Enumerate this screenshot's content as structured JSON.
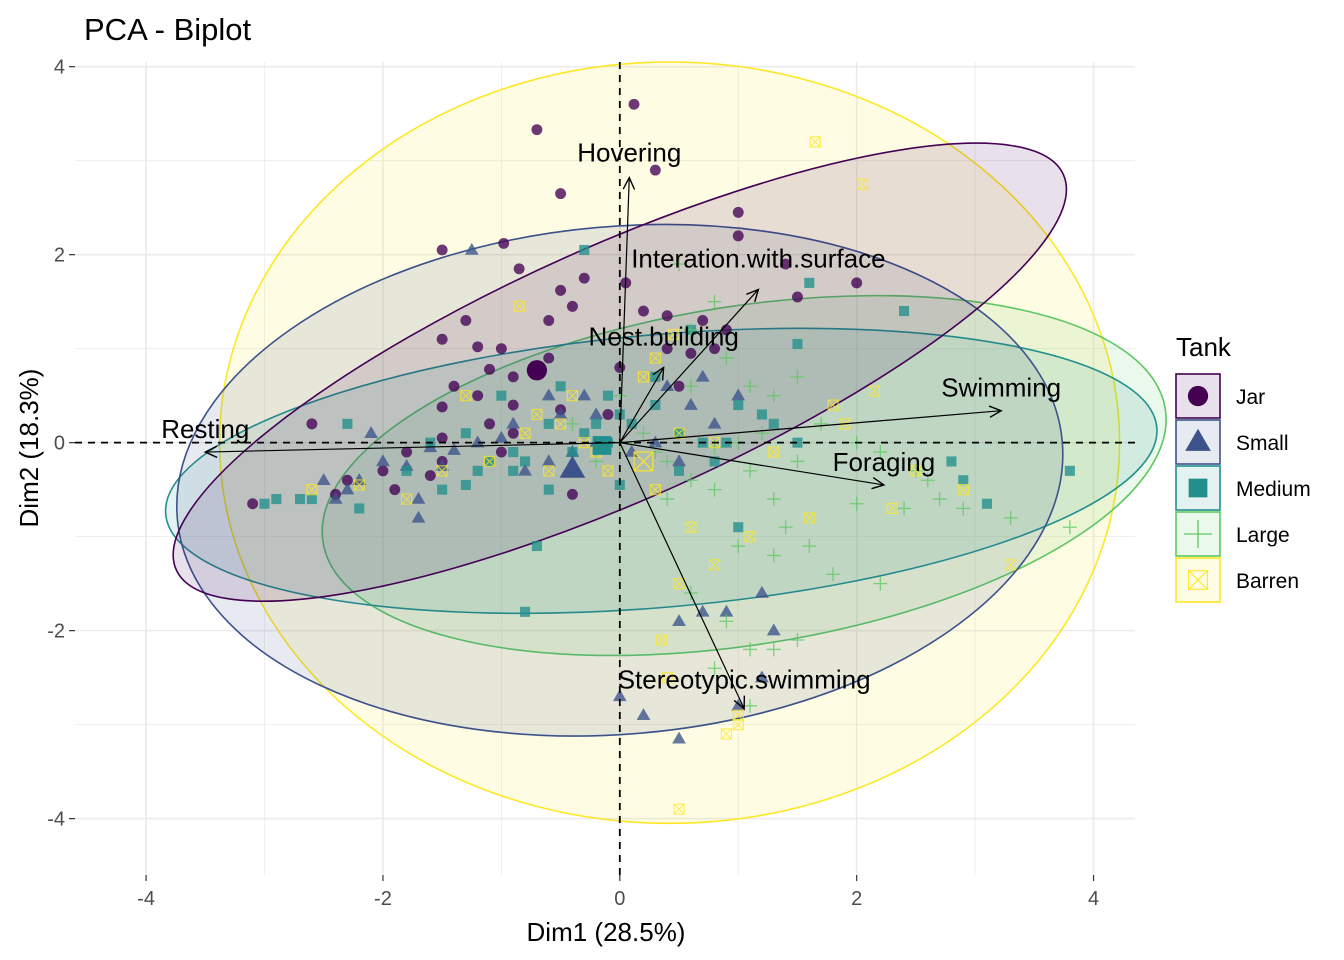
{
  "chart_data": {
    "type": "scatter",
    "title": "PCA - Biplot",
    "xlabel": "Dim1 (28.5%)",
    "ylabel": "Dim2 (18.3%)",
    "xlim": [
      -4.6,
      4.35
    ],
    "ylim": [
      -4.6,
      4.05
    ],
    "xticks": [
      -4,
      -2,
      0,
      2,
      4
    ],
    "yticks": [
      -4,
      -2,
      0,
      2,
      4
    ],
    "grid": true,
    "legend": {
      "title": "Tank",
      "position": "right"
    },
    "series": [
      {
        "name": "Jar",
        "shape": "circle",
        "color": "#440154",
        "centroid": [
          -0.7,
          0.77
        ],
        "ellipse": {
          "cx": 0.0,
          "cy": 0.75,
          "rx": 4.1,
          "ry": 1.35,
          "angle": 24
        },
        "points": [
          [
            -0.7,
            3.33
          ],
          [
            0.12,
            3.6
          ],
          [
            -0.5,
            2.65
          ],
          [
            -0.98,
            2.12
          ],
          [
            -1.5,
            2.05
          ],
          [
            -0.3,
            1.75
          ],
          [
            -0.5,
            1.62
          ],
          [
            -0.85,
            1.85
          ],
          [
            -0.4,
            1.45
          ],
          [
            -0.6,
            1.3
          ],
          [
            -1.3,
            1.3
          ],
          [
            -1.5,
            1.1
          ],
          [
            -1.2,
            1.02
          ],
          [
            -1.0,
            1.0
          ],
          [
            -0.6,
            0.9
          ],
          [
            -1.1,
            0.78
          ],
          [
            -0.9,
            0.7
          ],
          [
            -1.4,
            0.6
          ],
          [
            -1.2,
            0.5
          ],
          [
            -0.9,
            0.4
          ],
          [
            -0.5,
            0.35
          ],
          [
            -1.5,
            0.38
          ],
          [
            -1.1,
            0.2
          ],
          [
            -0.9,
            0.1
          ],
          [
            -1.5,
            0.05
          ],
          [
            -1.0,
            -0.1
          ],
          [
            -1.5,
            -0.2
          ],
          [
            -1.8,
            -0.1
          ],
          [
            -2.0,
            -0.3
          ],
          [
            -1.9,
            -0.5
          ],
          [
            -2.3,
            -0.4
          ],
          [
            -2.6,
            0.2
          ],
          [
            -3.1,
            -0.65
          ],
          [
            -1.6,
            -0.35
          ],
          [
            -2.4,
            -0.55
          ],
          [
            -0.4,
            -0.55
          ],
          [
            -0.1,
            0.3
          ],
          [
            0.0,
            0.8
          ],
          [
            0.4,
            1.0
          ],
          [
            0.6,
            0.95
          ],
          [
            0.7,
            1.3
          ],
          [
            0.9,
            1.2
          ],
          [
            1.0,
            2.2
          ],
          [
            1.0,
            2.45
          ],
          [
            1.4,
            1.9
          ],
          [
            1.5,
            1.55
          ],
          [
            2.0,
            1.7
          ],
          [
            0.3,
            2.9
          ],
          [
            0.05,
            1.7
          ],
          [
            0.5,
            0.6
          ],
          [
            0.2,
            1.4
          ],
          [
            0.8,
            1.0
          ],
          [
            0.4,
            1.35
          ]
        ]
      },
      {
        "name": "Small",
        "shape": "triangle",
        "color": "#3b528b",
        "centroid": [
          -0.4,
          -0.28
        ],
        "ellipse": {
          "cx": 0.0,
          "cy": -0.4,
          "rx": 3.75,
          "ry": 2.7,
          "angle": 5
        },
        "points": [
          [
            -1.25,
            2.05
          ],
          [
            -2.3,
            -0.5
          ],
          [
            -2.5,
            -0.4
          ],
          [
            -2.0,
            -0.2
          ],
          [
            -1.8,
            -0.25
          ],
          [
            -1.6,
            -0.05
          ],
          [
            -1.4,
            -0.08
          ],
          [
            -1.2,
            0.0
          ],
          [
            -1.0,
            0.05
          ],
          [
            -0.8,
            -0.3
          ],
          [
            -0.6,
            -0.2
          ],
          [
            -0.4,
            -0.1
          ],
          [
            -0.2,
            0.0
          ],
          [
            -0.5,
            0.3
          ],
          [
            -0.3,
            0.5
          ],
          [
            -0.2,
            0.3
          ],
          [
            0.1,
            -0.1
          ],
          [
            0.3,
            0.0
          ],
          [
            0.5,
            -0.2
          ],
          [
            0.6,
            0.4
          ],
          [
            0.8,
            0.2
          ],
          [
            1.0,
            0.5
          ],
          [
            -2.1,
            0.1
          ],
          [
            -2.2,
            -0.4
          ],
          [
            -1.7,
            -0.6
          ],
          [
            -1.7,
            -0.8
          ],
          [
            -2.4,
            -0.6
          ],
          [
            0.7,
            -1.8
          ],
          [
            0.9,
            -1.8
          ],
          [
            1.2,
            -1.6
          ],
          [
            0.5,
            -1.9
          ],
          [
            1.3,
            -2.0
          ],
          [
            0.0,
            -2.7
          ],
          [
            0.2,
            -2.9
          ],
          [
            0.5,
            -3.15
          ],
          [
            1.0,
            -2.8
          ],
          [
            1.2,
            -2.5
          ],
          [
            -0.9,
            0.2
          ],
          [
            -1.5,
            -0.25
          ],
          [
            -0.6,
            0.5
          ],
          [
            0.4,
            0.6
          ],
          [
            0.7,
            0.7
          ]
        ]
      },
      {
        "name": "Medium",
        "shape": "square",
        "color": "#21908c",
        "centroid": [
          -0.15,
          -0.03
        ],
        "ellipse": {
          "cx": 0.35,
          "cy": -0.3,
          "rx": 4.2,
          "ry": 1.45,
          "angle": 5
        },
        "points": [
          [
            -0.3,
            2.05
          ],
          [
            1.6,
            1.7
          ],
          [
            1.5,
            1.05
          ],
          [
            2.4,
            1.4
          ],
          [
            -2.3,
            0.2
          ],
          [
            -2.7,
            -0.6
          ],
          [
            -2.9,
            -0.6
          ],
          [
            -3.0,
            -0.65
          ],
          [
            -2.6,
            -0.6
          ],
          [
            -2.2,
            -0.7
          ],
          [
            -1.8,
            -0.3
          ],
          [
            -1.5,
            -0.5
          ],
          [
            -1.3,
            -0.45
          ],
          [
            -1.1,
            -0.2
          ],
          [
            -1.2,
            -0.3
          ],
          [
            -0.9,
            -0.1
          ],
          [
            -0.8,
            -0.2
          ],
          [
            -0.6,
            -0.5
          ],
          [
            -0.4,
            -0.1
          ],
          [
            -0.3,
            0.1
          ],
          [
            -0.2,
            0.2
          ],
          [
            -0.1,
            0.5
          ],
          [
            0.0,
            -0.45
          ],
          [
            0.1,
            0.2
          ],
          [
            0.3,
            0.4
          ],
          [
            0.5,
            0.1
          ],
          [
            0.7,
            0.0
          ],
          [
            0.8,
            -0.2
          ],
          [
            1.0,
            0.4
          ],
          [
            1.2,
            0.3
          ],
          [
            1.3,
            0.2
          ],
          [
            1.5,
            0.0
          ],
          [
            2.8,
            -0.2
          ],
          [
            2.9,
            -0.4
          ],
          [
            3.1,
            -0.65
          ],
          [
            3.8,
            -0.3
          ],
          [
            -0.7,
            -1.1
          ],
          [
            -0.9,
            -0.3
          ],
          [
            -1.0,
            0.5
          ],
          [
            -0.5,
            0.6
          ],
          [
            0.3,
            0.7
          ],
          [
            -0.1,
            0.0
          ],
          [
            -0.6,
            0.2
          ],
          [
            -1.6,
            0.0
          ],
          [
            -1.3,
            0.1
          ],
          [
            -0.8,
            -1.8
          ],
          [
            0.5,
            -0.3
          ],
          [
            0.0,
            0.3
          ],
          [
            0.6,
            1.2
          ],
          [
            0.9,
            0.0
          ],
          [
            1.0,
            -0.9
          ]
        ]
      },
      {
        "name": "Large",
        "shape": "plus",
        "color": "#5dc863",
        "centroid": [
          0.0,
          0.0
        ],
        "ellipse": {
          "cx": 1.05,
          "cy": -0.35,
          "rx": 3.6,
          "ry": 1.8,
          "angle": 9
        },
        "points": [
          [
            0.5,
            1.9
          ],
          [
            0.8,
            1.5
          ],
          [
            0.6,
            1.2
          ],
          [
            0.9,
            0.9
          ],
          [
            1.1,
            0.6
          ],
          [
            1.3,
            0.5
          ],
          [
            1.5,
            0.7
          ],
          [
            1.7,
            0.2
          ],
          [
            2.0,
            0.0
          ],
          [
            2.2,
            -0.1
          ],
          [
            2.5,
            -0.3
          ],
          [
            2.6,
            -0.4
          ],
          [
            2.7,
            -0.6
          ],
          [
            2.9,
            -0.7
          ],
          [
            3.3,
            -0.8
          ],
          [
            3.8,
            -0.9
          ],
          [
            0.4,
            -0.2
          ],
          [
            0.6,
            -0.4
          ],
          [
            0.8,
            -0.5
          ],
          [
            1.1,
            -0.3
          ],
          [
            1.3,
            -0.6
          ],
          [
            1.4,
            -0.9
          ],
          [
            1.6,
            -1.1
          ],
          [
            1.8,
            -1.4
          ],
          [
            2.2,
            -1.5
          ],
          [
            1.0,
            -1.1
          ],
          [
            1.3,
            -1.2
          ],
          [
            0.6,
            -1.6
          ],
          [
            0.9,
            -1.9
          ],
          [
            1.1,
            -2.2
          ],
          [
            1.3,
            -2.2
          ],
          [
            1.5,
            -2.1
          ],
          [
            0.8,
            -2.4
          ],
          [
            1.1,
            -2.8
          ],
          [
            0.4,
            -0.6
          ],
          [
            -0.4,
            0.2
          ],
          [
            -0.2,
            -0.2
          ],
          [
            0.2,
            0.1
          ],
          [
            1.0,
            0.0
          ],
          [
            1.5,
            -0.2
          ],
          [
            2.0,
            -0.65
          ],
          [
            2.4,
            -0.7
          ],
          [
            0.8,
            -0.05
          ],
          [
            1.2,
            0.1
          ],
          [
            0.0,
            0.5
          ],
          [
            0.6,
            0.6
          ],
          [
            0.3,
            -0.1
          ]
        ]
      },
      {
        "name": "Barren",
        "shape": "boxed-x",
        "color": "#fde725",
        "centroid": [
          0.2,
          -0.2
        ],
        "ellipse": {
          "cx": 0.42,
          "cy": 0.0,
          "rx": 3.8,
          "ry": 4.05,
          "angle": 0
        },
        "points": [
          [
            1.65,
            3.2
          ],
          [
            2.05,
            2.75
          ],
          [
            0.45,
            1.15
          ],
          [
            0.3,
            0.9
          ],
          [
            1.8,
            0.4
          ],
          [
            2.15,
            0.55
          ],
          [
            -0.85,
            1.45
          ],
          [
            -1.3,
            0.5
          ],
          [
            -0.7,
            0.3
          ],
          [
            -0.5,
            0.2
          ],
          [
            -0.3,
            0.0
          ],
          [
            -0.2,
            -0.1
          ],
          [
            0.2,
            0.7
          ],
          [
            0.5,
            0.1
          ],
          [
            0.8,
            0.0
          ],
          [
            1.3,
            -0.1
          ],
          [
            1.9,
            0.2
          ],
          [
            2.5,
            -0.3
          ],
          [
            2.9,
            -0.5
          ],
          [
            3.3,
            -1.3
          ],
          [
            2.3,
            -0.7
          ],
          [
            1.6,
            -0.8
          ],
          [
            1.1,
            -1.0
          ],
          [
            0.8,
            -1.3
          ],
          [
            0.5,
            -1.5
          ],
          [
            0.35,
            -2.1
          ],
          [
            0.4,
            -2.5
          ],
          [
            1.0,
            -2.9
          ],
          [
            1.0,
            -3.0
          ],
          [
            0.9,
            -3.1
          ],
          [
            0.5,
            -3.9
          ],
          [
            -0.8,
            0.1
          ],
          [
            -1.1,
            -0.2
          ],
          [
            -1.5,
            -0.3
          ],
          [
            -1.8,
            -0.6
          ],
          [
            -2.2,
            -0.45
          ],
          [
            -2.6,
            -0.5
          ],
          [
            -0.1,
            -0.3
          ],
          [
            0.3,
            -0.5
          ],
          [
            0.6,
            -0.9
          ],
          [
            -0.4,
            0.5
          ],
          [
            -0.6,
            -0.3
          ]
        ]
      }
    ],
    "variables": [
      {
        "name": "Hovering",
        "x": 0.08,
        "y": 2.82
      },
      {
        "name": "Interation.with.surface",
        "x": 1.17,
        "y": 1.63
      },
      {
        "name": "Nest.building",
        "x": 0.37,
        "y": 0.8
      },
      {
        "name": "Swimming",
        "x": 3.22,
        "y": 0.34
      },
      {
        "name": "Resting",
        "x": -3.5,
        "y": -0.1
      },
      {
        "name": "Foraging",
        "x": 2.23,
        "y": -0.45
      },
      {
        "name": "Stereotypic.swimming",
        "x": 1.05,
        "y": -2.83
      }
    ]
  }
}
